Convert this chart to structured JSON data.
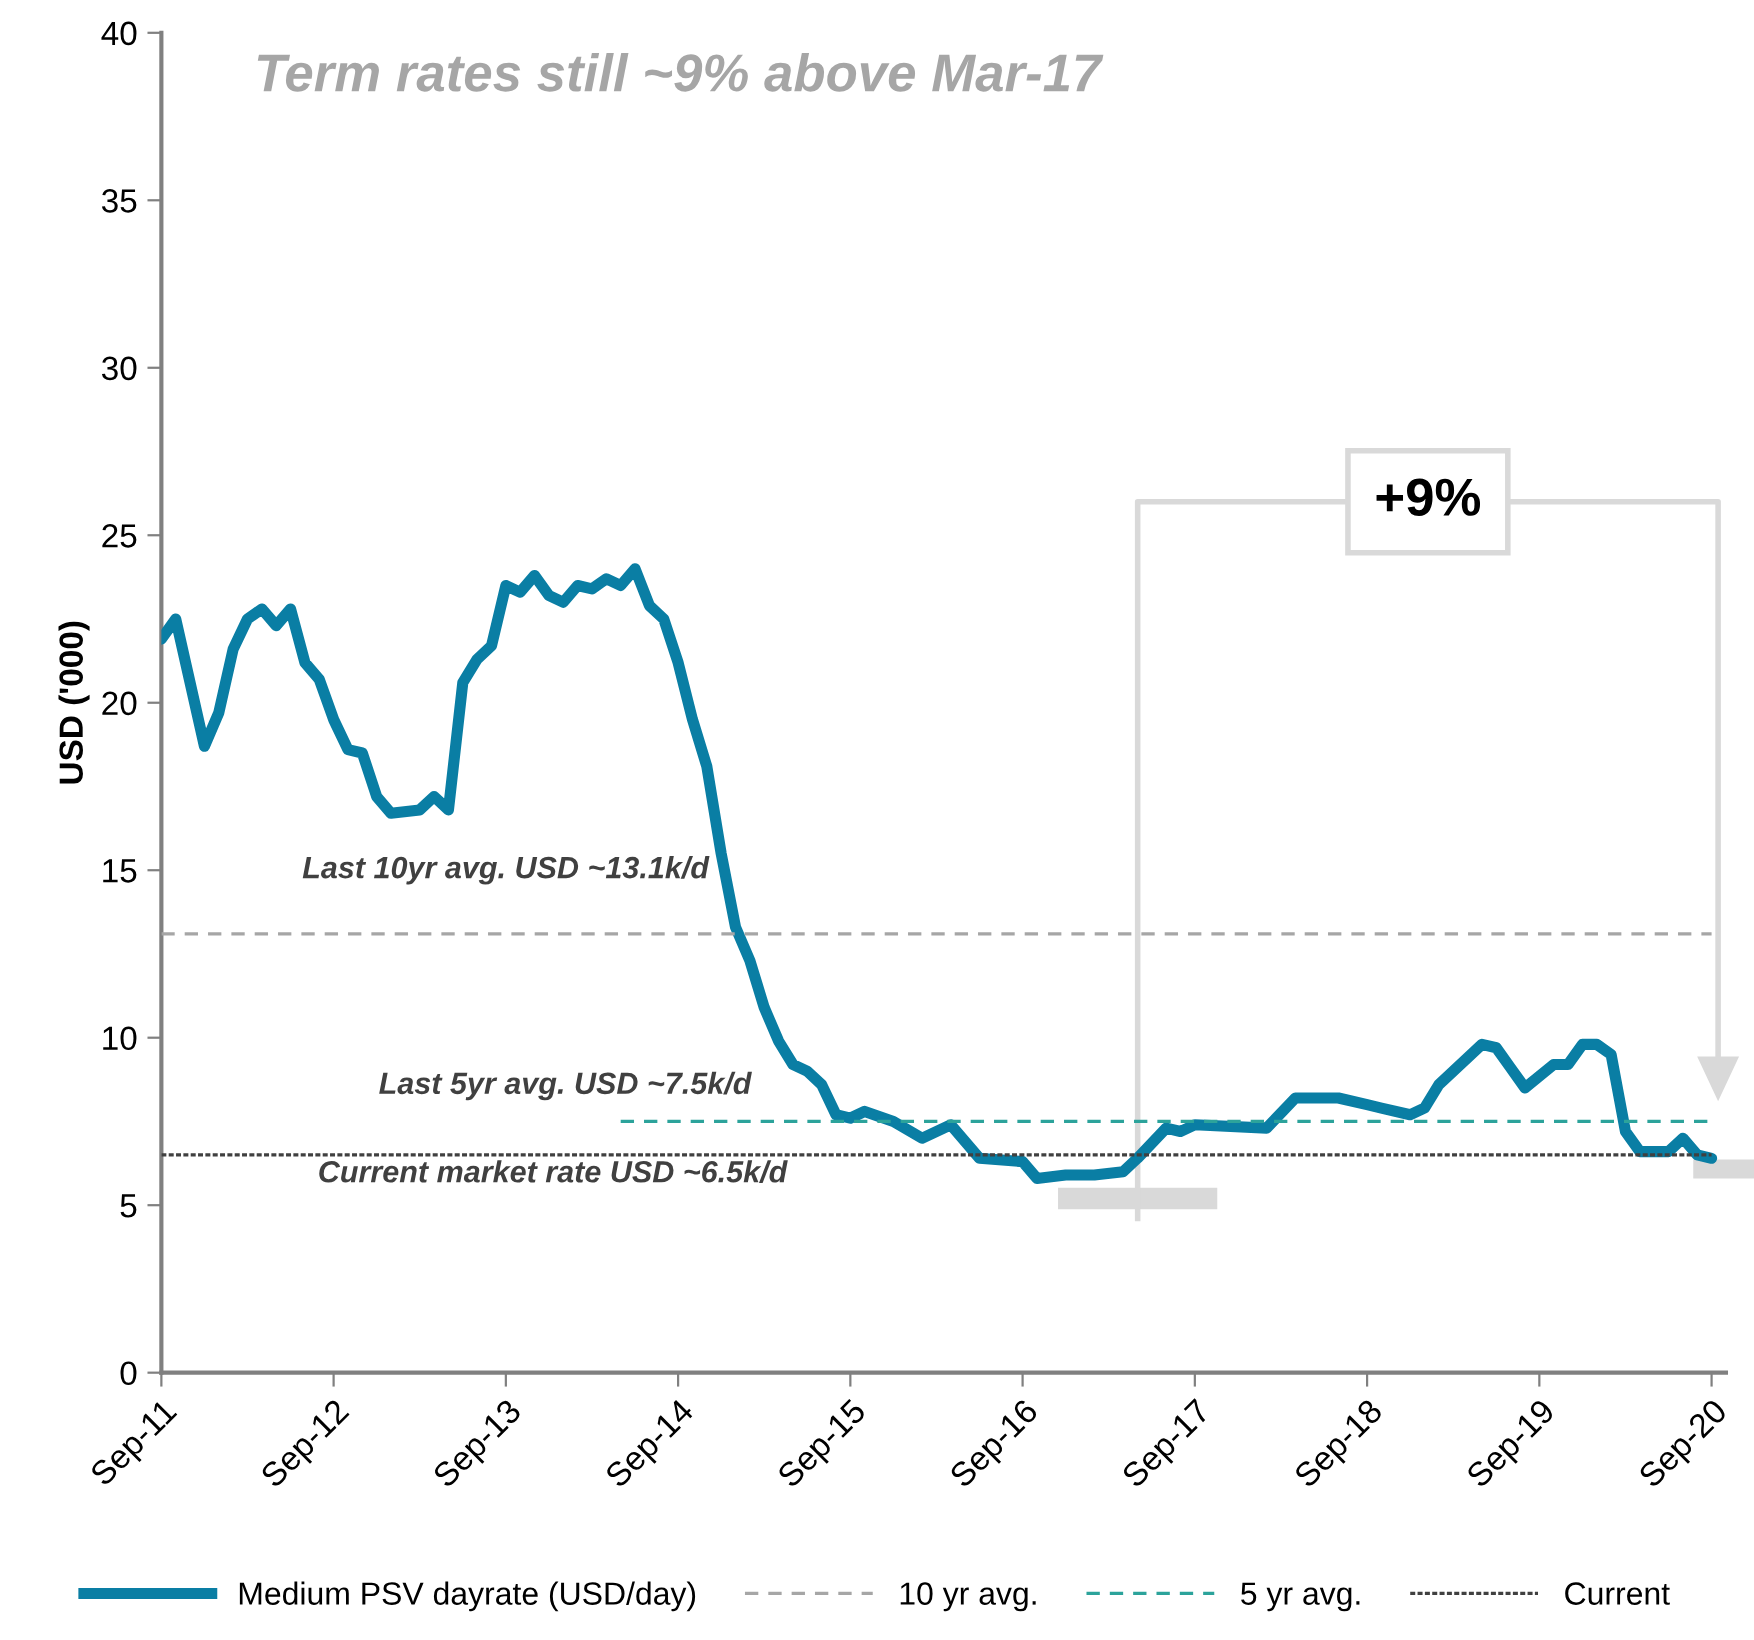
{
  "chart_data": {
    "type": "line",
    "title": "Term rates still ~9% above Mar-17",
    "ylabel": "USD ('000)",
    "xlim": [
      "2011-09",
      "2020-10"
    ],
    "xticks": [
      {
        "value": "2011-09",
        "label": "Sep-11"
      },
      {
        "value": "2012-09",
        "label": "Sep-12"
      },
      {
        "value": "2013-09",
        "label": "Sep-13"
      },
      {
        "value": "2014-09",
        "label": "Sep-14"
      },
      {
        "value": "2015-09",
        "label": "Sep-15"
      },
      {
        "value": "2016-09",
        "label": "Sep-16"
      },
      {
        "value": "2017-09",
        "label": "Sep-17"
      },
      {
        "value": "2018-09",
        "label": "Sep-18"
      },
      {
        "value": "2019-09",
        "label": "Sep-19"
      },
      {
        "value": "2020-09",
        "label": "Sep-20"
      }
    ],
    "ylim": [
      0,
      40
    ],
    "yticks": [
      0,
      5,
      10,
      15,
      20,
      25,
      30,
      35,
      40
    ],
    "grid": false,
    "legend": "bottom",
    "marker": "none",
    "series": [
      {
        "name": "Medium PSV dayrate (USD/day)",
        "color": "#0a7ea4",
        "line_style": "solid",
        "x": [
          "2011-09",
          "2011-10",
          "2011-12",
          "2012-01",
          "2012-02",
          "2012-03",
          "2012-04",
          "2012-05",
          "2012-06",
          "2012-07",
          "2012-08",
          "2012-09",
          "2012-10",
          "2012-11",
          "2012-12",
          "2013-01",
          "2013-03",
          "2013-04",
          "2013-05",
          "2013-06",
          "2013-07",
          "2013-08",
          "2013-09",
          "2013-10",
          "2013-11",
          "2013-12",
          "2014-01",
          "2014-02",
          "2014-03",
          "2014-04",
          "2014-05",
          "2014-06",
          "2014-07",
          "2014-08",
          "2014-09",
          "2014-10",
          "2014-11",
          "2014-12",
          "2015-01",
          "2015-02",
          "2015-03",
          "2015-04",
          "2015-05",
          "2015-06",
          "2015-07",
          "2015-08",
          "2015-09",
          "2015-10",
          "2015-12",
          "2016-02",
          "2016-04",
          "2016-06",
          "2016-09",
          "2016-10",
          "2016-12",
          "2017-02",
          "2017-04",
          "2017-05",
          "2017-07",
          "2017-08",
          "2017-09",
          "2018-02",
          "2018-04",
          "2018-07",
          "2018-09",
          "2018-10",
          "2018-12",
          "2019-01",
          "2019-02",
          "2019-05",
          "2019-06",
          "2019-07",
          "2019-08",
          "2019-10",
          "2019-11",
          "2019-12",
          "2020-01",
          "2020-02",
          "2020-03",
          "2020-04",
          "2020-06",
          "2020-07",
          "2020-08",
          "2020-09"
        ],
        "values": [
          21.9,
          22.5,
          18.7,
          19.7,
          21.6,
          22.5,
          22.8,
          22.3,
          22.8,
          21.2,
          20.7,
          19.5,
          18.6,
          18.5,
          17.2,
          16.7,
          16.8,
          17.2,
          16.8,
          20.6,
          21.3,
          21.7,
          23.5,
          23.3,
          23.8,
          23.2,
          23.0,
          23.5,
          23.4,
          23.7,
          23.5,
          24.0,
          22.9,
          22.5,
          21.2,
          19.5,
          18.1,
          15.5,
          13.3,
          12.3,
          10.9,
          9.9,
          9.2,
          9.0,
          8.6,
          7.7,
          7.6,
          7.8,
          7.5,
          7.0,
          7.4,
          6.4,
          6.3,
          5.8,
          5.9,
          5.9,
          6.0,
          6.4,
          7.3,
          7.2,
          7.4,
          7.3,
          8.2,
          8.2,
          8.0,
          7.9,
          7.7,
          7.9,
          8.6,
          9.8,
          9.7,
          9.1,
          8.5,
          9.2,
          9.2,
          9.8,
          9.8,
          9.5,
          7.2,
          6.6,
          6.6,
          7.0,
          6.5,
          6.4
        ]
      },
      {
        "name": "10 yr avg.",
        "color": "#a6a6a6",
        "line_style": "dashed",
        "x": [
          "2011-09",
          "2020-09"
        ],
        "values": [
          13.1,
          13.1
        ]
      },
      {
        "name": "5 yr avg.",
        "color": "#2ca39b",
        "line_style": "dashed",
        "x": [
          "2014-05",
          "2020-09"
        ],
        "values": [
          7.5,
          7.5
        ]
      },
      {
        "name": "Current",
        "color": "#404040",
        "line_style": "dotted",
        "x": [
          "2011-09",
          "2020-09"
        ],
        "values": [
          6.5,
          6.5
        ]
      }
    ],
    "annotations": [
      "+9%",
      "Last 10yr avg. USD ~13.1k/d",
      "Last 5yr avg. USD ~7.5k/d",
      "Current market rate USD ~6.5k/d"
    ]
  }
}
